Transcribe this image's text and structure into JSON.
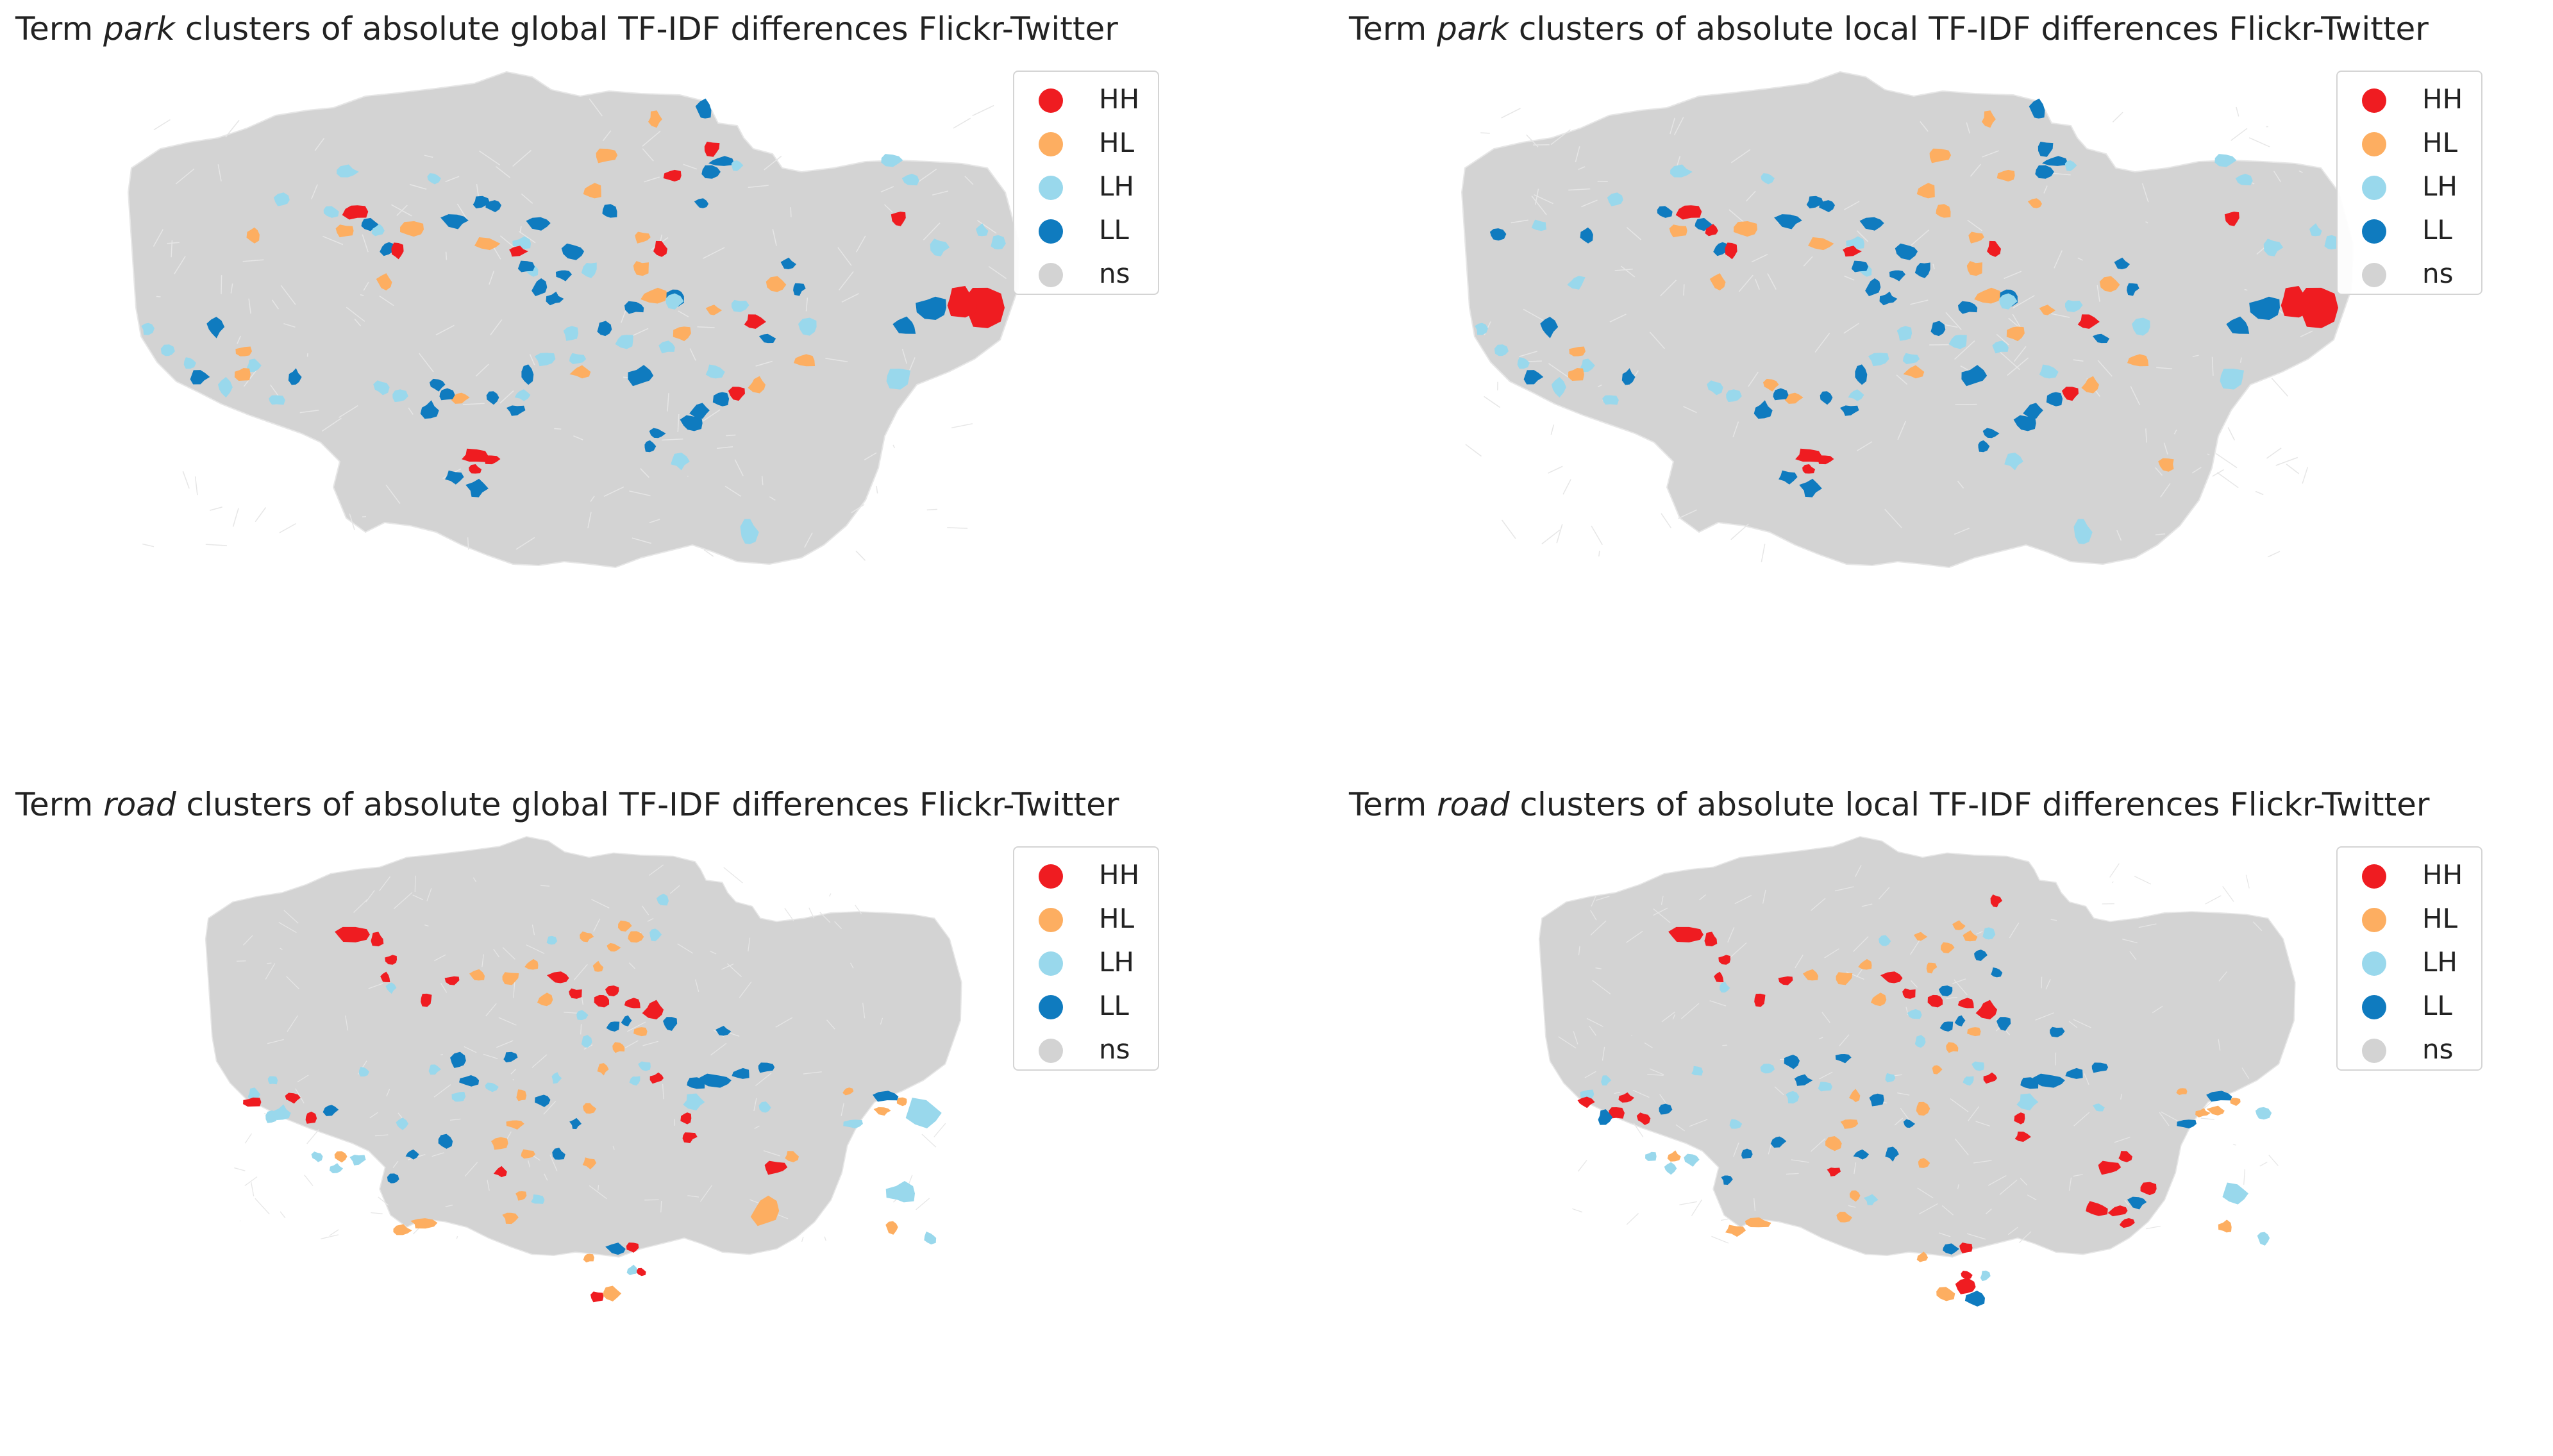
{
  "colors": {
    "HH": "#ef1c21",
    "HL": "#fdae61",
    "LH": "#99d8ec",
    "LL": "#0f7bbf",
    "ns": "#d3d3d3",
    "border": "#e6e6e6"
  },
  "legend": [
    {
      "code": "HH",
      "label": "HH"
    },
    {
      "code": "HL",
      "label": "HL"
    },
    {
      "code": "LH",
      "label": "LH"
    },
    {
      "code": "LL",
      "label": "LL"
    },
    {
      "code": "ns",
      "label": "ns"
    }
  ],
  "panels": [
    {
      "title_prefix": "Term ",
      "term": "park",
      "title_suffix": " clusters of absolute global TF-IDF differences Flickr-Twitter",
      "pattern": "park_global"
    },
    {
      "title_prefix": "Term ",
      "term": "park",
      "title_suffix": " clusters of absolute local TF-IDF differences Flickr-Twitter",
      "pattern": "park_local"
    },
    {
      "title_prefix": "Term ",
      "term": "road",
      "title_suffix": " clusters of absolute global TF-IDF differences Flickr-Twitter",
      "pattern": "road_global"
    },
    {
      "title_prefix": "Term ",
      "term": "road",
      "title_suffix": " clusters of absolute local TF-IDF differences Flickr-Twitter",
      "pattern": "road_local"
    }
  ]
}
